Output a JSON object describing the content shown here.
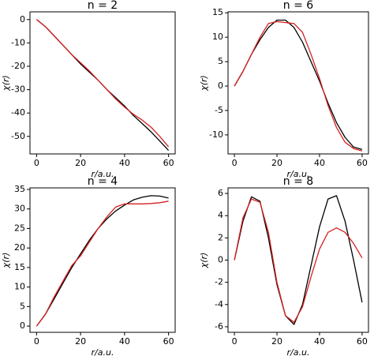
{
  "chart_data": [
    {
      "type": "line",
      "title": "n = 2",
      "xlabel": "r/a.u.",
      "ylabel": "χ(r)",
      "x": [
        0,
        4,
        8,
        12,
        16,
        20,
        24,
        28,
        32,
        36,
        40,
        44,
        48,
        52,
        56,
        60
      ],
      "xlim": [
        -3,
        63
      ],
      "xticks": [
        0,
        20,
        40,
        60
      ],
      "ylim": [
        -57.5,
        3.3
      ],
      "yticks": [
        -50,
        -40,
        -30,
        -20,
        -10,
        0
      ],
      "series": [
        {
          "color": "#000000",
          "values": [
            0,
            -3,
            -7,
            -11,
            -15,
            -19,
            -22.5,
            -26,
            -30,
            -33.5,
            -37,
            -41,
            -44.5,
            -48,
            -52,
            -56
          ]
        },
        {
          "color": "#d62020",
          "values": [
            0,
            -3,
            -7,
            -11,
            -15,
            -18.5,
            -22,
            -26,
            -30,
            -34,
            -37.5,
            -40.5,
            -43,
            -46,
            -50,
            -54.5
          ]
        }
      ]
    },
    {
      "type": "line",
      "title": "n = 6",
      "xlabel": "r/a.u.",
      "ylabel": "χ(r)",
      "x": [
        0,
        4,
        8,
        12,
        16,
        20,
        24,
        28,
        32,
        36,
        40,
        44,
        48,
        52,
        56,
        60
      ],
      "xlim": [
        -3,
        63
      ],
      "xticks": [
        0,
        20,
        40,
        60
      ],
      "ylim": [
        -13.9,
        15.2
      ],
      "yticks": [
        -10,
        -5,
        0,
        5,
        10,
        15
      ],
      "series": [
        {
          "color": "#000000",
          "values": [
            0,
            3,
            6.5,
            9.5,
            12,
            13.5,
            13.5,
            12,
            9,
            5,
            1,
            -3.5,
            -7.5,
            -10.5,
            -12.5,
            -13
          ]
        },
        {
          "color": "#d62020",
          "values": [
            0,
            3,
            6.5,
            10,
            12.8,
            13.2,
            13,
            12.8,
            11,
            6.5,
            1.5,
            -4,
            -8.5,
            -11.5,
            -12.8,
            -13.3
          ]
        }
      ]
    },
    {
      "type": "line",
      "title": "n = 4",
      "xlabel": "r/a.u.",
      "ylabel": "χ(r)",
      "x": [
        0,
        4,
        8,
        12,
        16,
        20,
        24,
        28,
        32,
        36,
        40,
        44,
        48,
        52,
        56,
        60
      ],
      "xlim": [
        -3,
        63
      ],
      "xticks": [
        0,
        20,
        40,
        60
      ],
      "ylim": [
        -1.6,
        35.4
      ],
      "yticks": [
        0,
        5,
        10,
        15,
        20,
        25,
        30,
        35
      ],
      "series": [
        {
          "color": "#000000",
          "values": [
            0,
            3,
            7,
            11,
            15,
            18.5,
            22,
            25,
            27.5,
            29.5,
            31,
            32.3,
            33,
            33.4,
            33.3,
            32.8
          ]
        },
        {
          "color": "#d62020",
          "values": [
            0,
            3,
            7.5,
            11.5,
            15.5,
            18,
            21.5,
            25,
            28,
            30.5,
            31.3,
            31.3,
            31.3,
            31.4,
            31.6,
            32
          ]
        }
      ]
    },
    {
      "type": "line",
      "title": "n = 8",
      "xlabel": "r/a.u.",
      "ylabel": "χ(r)",
      "x": [
        0,
        4,
        8,
        12,
        16,
        20,
        24,
        28,
        32,
        36,
        40,
        44,
        48,
        52,
        56,
        60
      ],
      "xlim": [
        -3,
        63
      ],
      "xticks": [
        0,
        20,
        40,
        60
      ],
      "ylim": [
        -6.5,
        6.5
      ],
      "yticks": [
        -6,
        -4,
        -2,
        0,
        2,
        4,
        6
      ],
      "series": [
        {
          "color": "#000000",
          "values": [
            0,
            3.5,
            5.7,
            5.3,
            2,
            -2.2,
            -5,
            -5.8,
            -4,
            -0.5,
            3,
            5.5,
            5.8,
            3.5,
            0,
            -3.8
          ]
        },
        {
          "color": "#d62020",
          "values": [
            0,
            3.8,
            5.5,
            5.2,
            2.5,
            -2,
            -5,
            -5.6,
            -4.2,
            -1.5,
            1,
            2.5,
            2.9,
            2.5,
            1.5,
            0.2
          ]
        }
      ]
    }
  ]
}
